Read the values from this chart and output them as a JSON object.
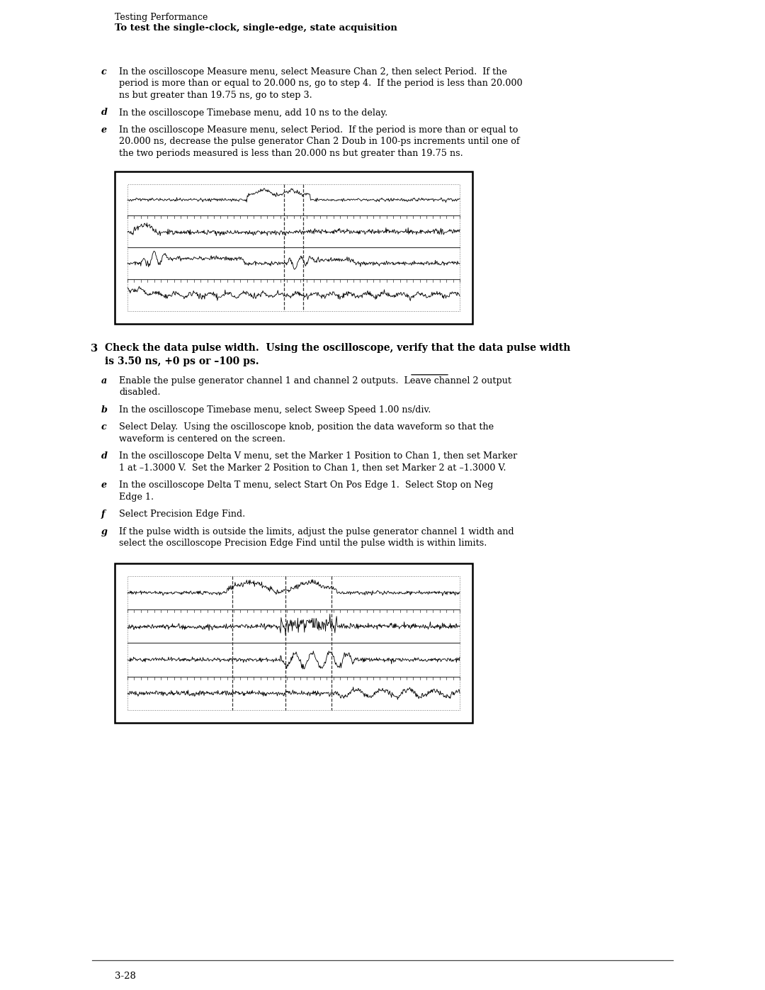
{
  "bg_color": "#ffffff",
  "header_line1": "Testing Performance",
  "header_line2": "To test the single-clock, single-edge, state acquisition",
  "section_c_text_lines": [
    "In the oscilloscope Measure menu, select Measure Chan 2, then select Period.  If the",
    "period is more than or equal to 20.000 ns, go to step 4.  If the period is less than 20.000",
    "ns but greater than 19.75 ns, go to step 3."
  ],
  "section_d_text": "In the oscilloscope Timebase menu, add 10 ns to the delay.",
  "section_e_text_lines": [
    "In the oscilloscope Measure menu, select Period.  If the period is more than or equal to",
    "20.000 ns, decrease the pulse generator Chan 2 Doub in 100-ps increments until one of",
    "the two periods measured is less than 20.000 ns but greater than 19.75 ns."
  ],
  "section3_text_lines": [
    "Check the data pulse width.  Using the oscilloscope, verify that the data pulse width",
    "is 3.50 ns, +0 ps or –100 ps."
  ],
  "section_a2_text_lines": [
    "Enable the pulse generator channel 1 and channel 2 outputs.  Leave channel 2 output",
    "disabled."
  ],
  "section_b2_text": "In the oscilloscope Timebase menu, select Sweep Speed 1.00 ns/div.",
  "section_c2_text_lines": [
    "Select Delay.  Using the oscilloscope knob, position the data waveform so that the",
    "waveform is centered on the screen."
  ],
  "section_d2_text_lines": [
    "In the oscilloscope Delta V menu, set the Marker 1 Position to Chan 1, then set Marker",
    "1 at –1.3000 V.  Set the Marker 2 Position to Chan 1, then set Marker 2 at –1.3000 V."
  ],
  "section_e2_text_lines": [
    "In the oscilloscope Delta T menu, select Start On Pos Edge 1.  Select Stop on Neg",
    "Edge 1."
  ],
  "section_f2_text": "Select Precision Edge Find.",
  "section_g2_text_lines": [
    "If the pulse width is outside the limits, adjust the pulse generator channel 1 width and",
    "select the oscilloscope Precision Edge Find until the pulse width is within limits."
  ],
  "footer_text": "3-28"
}
